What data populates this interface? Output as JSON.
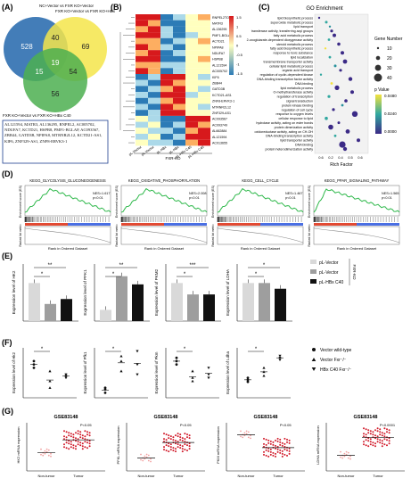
{
  "panels": {
    "A": "(A)",
    "B": "(B)",
    "C": "(C)",
    "D": "(D)",
    "E": "(E)",
    "F": "(F)",
    "G": "(G)"
  },
  "venn": {
    "label_left": "NC+Vector vs FXR KO+Vector",
    "label_right": "FXR KO+Vector vs FXR KO+HBx",
    "label_bottom": "FXR KO+Vector vs FXR KO+HBx C40",
    "counts": {
      "left_only": 528,
      "left_right": 40,
      "right_only": 69,
      "center": 19,
      "left_bottom": 15,
      "right_bottom": 54,
      "bottom_only": 56
    },
    "gene_list": "AL121594, MATR3, AL136295, RNPEL2, AC005702, NDUFA7, KCTD21, HSPB8, PMF1-BGLAP, AC093567, ZBB44, GATD3B, NPIPA8, MTRNR2L12, KCTD21-AS1, KIF6, ZNF329-AS1, ZNF8-ERVK3-1"
  },
  "heatmap": {
    "genes": [
      "RNPEL2TOF",
      "MATR3",
      "AL136295",
      "PMF1-BGLAP",
      "ACTD21",
      "NPIPA8",
      "NDUFA7",
      "HSPB8",
      "AL121594",
      "AC005702",
      "KIF6",
      "ZBB44",
      "GATD3B",
      "KCTD21-AS1",
      "ZNF8-ERVK3-1",
      "MTRNR2L12",
      "ZNF329-AS1",
      "AC093567",
      "AC093749",
      "AL662884",
      "AL121594",
      "AC013655"
    ],
    "columns": [
      "pL-Vector",
      "pL-Vector",
      "pL-HBx",
      "pL-HBx",
      "pL-HBx C40",
      "pL-HBx C40"
    ],
    "group_label": "FXR-KO",
    "scale_ticks": [
      "1.5",
      "1",
      "0.5",
      "0",
      "-0.5",
      "-1",
      "-1.5"
    ]
  },
  "go": {
    "title": "GO Enrichment",
    "terms": [
      "lipid biosynthetic process",
      "superoxide metabolic process",
      "lipid transport",
      "transferase activity, transferring acyl groups",
      "fatty acid metabolic process",
      "2-oxoglutarate-dependent dioxygenase activity",
      "steroid metabolic process",
      "fatty acid biosynthetic process",
      "response to toxic substance",
      "lipid localization",
      "transmembrane transporter activity",
      "cellular lipid metabolic process",
      "organic acid transport",
      "regulation of cyclin-dependent kinase",
      "DNA-binding transcription factor activity",
      "DNA binding",
      "lipid metabolic process",
      "O-methyltransferase activity",
      "regulation of transcription",
      "signal transduction",
      "protein kinase binding",
      "regulation of cell cycle",
      "response to oxygen levels",
      "cellular response to lipid",
      "hydrolase activity, acting on ester bonds",
      "protein dimerization activity",
      "oxidoreductase activity, acting on CH-OH",
      "DNA-binding transcription activity",
      "lipid transporter activity",
      "DNA binding",
      "protein heterodimerization activity"
    ],
    "x_ticks": [
      "0.6",
      "0.2",
      "0.4",
      "0.5",
      "0.6"
    ],
    "x_label": "Rich Factor",
    "size_legend_title": "Gene Number",
    "size_legend": [
      "10",
      "20",
      "30",
      "40"
    ],
    "p_title": "p Value",
    "p_ticks": [
      "0.0480",
      "0.0240",
      "0.0000"
    ]
  },
  "gsea": [
    {
      "title": "KEGG_GLYCOLYSIS_GLUCONEOGENESIS",
      "stats": "NES=1.617\np<0.01"
    },
    {
      "title": "KEGG_OXIDATIVE_PHOSPHORYLATION",
      "stats": "NES=2.008\np<0.01"
    },
    {
      "title": "KEGG_CELL_CYCLE",
      "stats": "NES=1.467\np<0.01"
    },
    {
      "title": "KEGG_PPAR_SIGNALING_PATHWAY",
      "stats": "NES=1.565\np<0.01"
    }
  ],
  "gsea_axis": {
    "y_label": "Enrichment score (ES)",
    "rank_label": "Ranked list metric",
    "x_label": "Rank in Ordered Dataset"
  },
  "barcharts": {
    "y_labels": [
      "Expression level of HK2",
      "Expression level of PFK1",
      "Expression level of PKM2",
      "Expression level of LDHA"
    ],
    "legend": [
      "pL-Vector",
      "pL-Vector",
      "pL-HBx C40"
    ],
    "group_label": "FXR-KO",
    "sig": [
      "**",
      "*",
      "**",
      "*",
      "***",
      "*",
      "*",
      "*",
      "*",
      "*"
    ]
  },
  "dots": {
    "y_labels": [
      "Expression level of Hk2",
      "Expression level of Pfk1",
      "Expression level of Pkm",
      "Expression level of Ldha"
    ],
    "legend": [
      "Vector wild-type",
      "Vector Fxr⁻/⁻",
      "HBx C40 Fxr⁻/⁻"
    ],
    "sig": [
      "*",
      "*",
      "*",
      "*",
      "**"
    ]
  },
  "scatter": {
    "dataset": "GSE83148",
    "y_labels": [
      "HK2 mRNA expression",
      "PFKL mRNA expression",
      "PKM mRNA expression",
      "LDHA mRNA expression"
    ],
    "p_values": [
      "P<0.05",
      "P<0.05",
      "P<0.05",
      "P<0.0001"
    ],
    "x_labels": [
      "Non-tumor",
      "Tumor"
    ]
  }
}
